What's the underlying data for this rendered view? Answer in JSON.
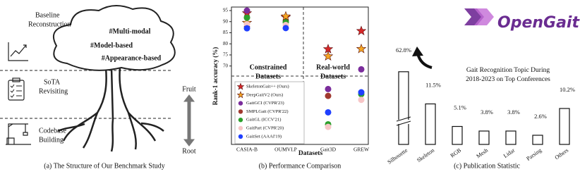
{
  "diagram": {
    "caption": "(a) The Structure of Our Benchmark Study",
    "stages": [
      [
        "Baseline",
        "Reconstruction"
      ],
      [
        "SoTA",
        "Revisiting"
      ],
      [
        "Codebase",
        "Building"
      ]
    ],
    "tags": [
      "#Multi-modal",
      "#Model-based",
      "#Appearance-based"
    ],
    "fruit": "Fruit",
    "root": "Root"
  },
  "chart_data": [
    {
      "type": "dot",
      "ylabel": "Rank-1 accuracy (%)",
      "xlabel": "Datasets",
      "caption": "(b) Performance Comparison",
      "categories": [
        "CASIA-B",
        "OUMVLP",
        "Gait3D",
        "GREW"
      ],
      "annotations": [
        [
          "Constrained",
          "Datasets"
        ],
        [
          "Real-world",
          "Datasets"
        ]
      ],
      "ylim": [
        20,
        95
      ],
      "ybreak": [
        55,
        68
      ],
      "yticks": [
        70,
        75,
        80,
        85,
        90,
        95
      ],
      "series": [
        {
          "name": "SkeletonGait++ (Ours)",
          "marker": "star",
          "color": "#d62728",
          "values": [
            93.8,
            92.0,
            77.6,
            85.8
          ]
        },
        {
          "name": "DeepGaitV2 (Ours)",
          "marker": "star",
          "color": "#f5a623",
          "values": [
            89.5,
            92.4,
            74.4,
            77.7
          ]
        },
        {
          "name": "GaitGCI (CVPR'23)",
          "marker": "circle",
          "color": "#7b2d9c",
          "values": [
            95.0,
            null,
            50.3,
            68.5
          ]
        },
        {
          "name": "SMPLGait (CVPR'22)",
          "marker": "circle",
          "color": "#a0392f",
          "values": [
            null,
            null,
            46.3,
            null
          ]
        },
        {
          "name": "GaitGL (ICCV'21)",
          "marker": "circle",
          "color": "#2ca02c",
          "values": [
            91.8,
            89.7,
            29.7,
            47.3
          ]
        },
        {
          "name": "GaitPart (CVPR'20)",
          "marker": "circle",
          "color": "#f7c6c7",
          "values": [
            88.8,
            88.5,
            28.2,
            44.0
          ]
        },
        {
          "name": "GaitSet (AAAI'19)",
          "marker": "circle",
          "color": "#1f3fff",
          "values": [
            87.0,
            87.1,
            36.7,
            48.4
          ]
        }
      ]
    },
    {
      "type": "bar",
      "logo": "OpenGait",
      "caption": "(c) Publication Statistic",
      "title": [
        "Gait Recognition Topic During",
        "2018-2023 on Top Conferences"
      ],
      "categories": [
        "Silhouette",
        "Skeleton",
        "RGB",
        "Mesh",
        "Lidar",
        "Parsing",
        "Others"
      ],
      "values": [
        62.8,
        11.5,
        5.1,
        3.8,
        3.8,
        2.6,
        10.2
      ],
      "value_labels": [
        "62.8%",
        "11.5%",
        "5.1%",
        "3.8%",
        "3.8%",
        "2.6%",
        "10.2%"
      ],
      "color": "#ffffff"
    }
  ]
}
